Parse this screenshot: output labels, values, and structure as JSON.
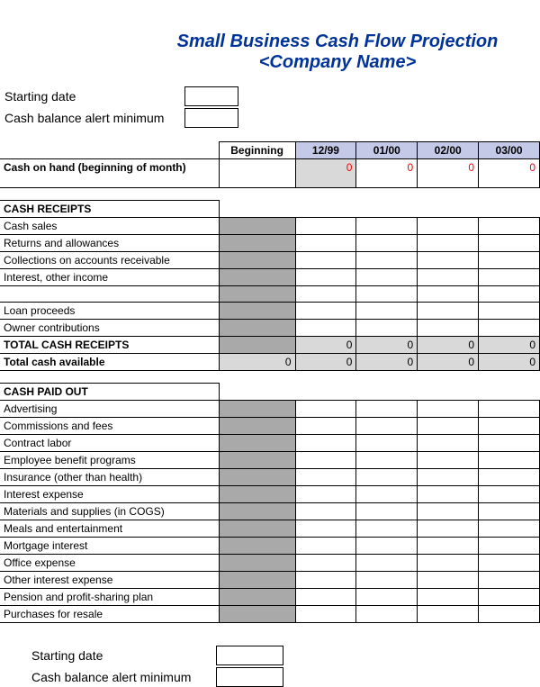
{
  "title": "Small Business Cash Flow Projection",
  "subtitle": "<Company Name>",
  "inputs": {
    "starting_date_label": "Starting date",
    "starting_date_value": "",
    "cash_min_label": "Cash balance alert minimum",
    "cash_min_value": ""
  },
  "columns": {
    "beginning": "Beginning",
    "months": [
      "12/99",
      "01/00",
      "02/00",
      "03/00"
    ]
  },
  "cash_on_hand": {
    "label": "Cash on hand (beginning of month)",
    "beginning": "",
    "values": [
      "0",
      "0",
      "0",
      "0"
    ]
  },
  "receipts": {
    "header": "CASH RECEIPTS",
    "rows": [
      "Cash sales",
      "Returns and allowances",
      "Collections on accounts receivable",
      "Interest, other income"
    ],
    "gap_rows": [
      "Loan proceeds",
      "Owner contributions"
    ],
    "total_label": "TOTAL CASH RECEIPTS",
    "total_values": [
      "0",
      "0",
      "0",
      "0"
    ],
    "available_label": "Total cash available",
    "available_beg": "0",
    "available_values": [
      "0",
      "0",
      "0",
      "0"
    ]
  },
  "paidout": {
    "header": "CASH PAID OUT",
    "rows": [
      "Advertising",
      "Commissions and fees",
      "Contract labor",
      "Employee benefit programs",
      "Insurance (other than health)",
      "Interest expense",
      "Materials and supplies (in COGS)",
      "Meals and entertainment",
      "Mortgage interest",
      "Office expense",
      "Other interest expense",
      "Pension and profit-sharing plan",
      "Purchases for resale"
    ]
  },
  "colors": {
    "title": "#003399",
    "header_bg": "#c5c9e8",
    "gray": "#a9a9a9",
    "light_gray": "#d9d9d9",
    "red": "#ff0000"
  }
}
